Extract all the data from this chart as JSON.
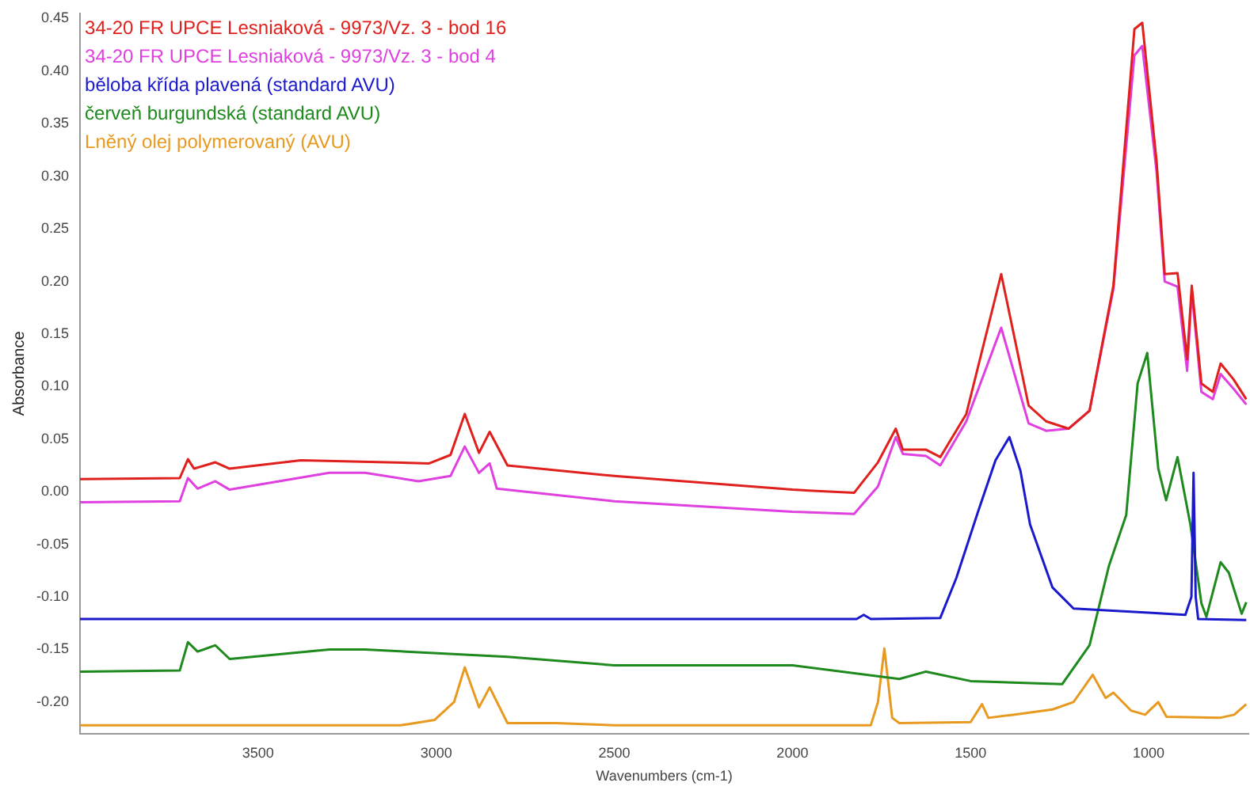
{
  "chart_data": {
    "type": "line",
    "xlabel": "Wavenumbers (cm-1)",
    "ylabel": "Absorbance",
    "xlim": [
      4000,
      720
    ],
    "ylim": [
      -0.23,
      0.455
    ],
    "xticks": [
      3500,
      3000,
      2500,
      2000,
      1500,
      1000
    ],
    "yticks": [
      {
        "value": -0.2,
        "label": "-0.20"
      },
      {
        "value": -0.15,
        "label": "-0.15"
      },
      {
        "value": -0.1,
        "label": "-0.10"
      },
      {
        "value": -0.05,
        "label": "-0.05"
      },
      {
        "value": 0,
        "label": "0.00"
      },
      {
        "value": 0.05,
        "label": "0.05"
      },
      {
        "value": 0.1,
        "label": "0.10"
      },
      {
        "value": 0.15,
        "label": "0.15"
      },
      {
        "value": 0.2,
        "label": "0.20"
      },
      {
        "value": 0.25,
        "label": "0.25"
      },
      {
        "value": 0.3,
        "label": "0.30"
      },
      {
        "value": 0.35,
        "label": "0.35"
      },
      {
        "value": 0.4,
        "label": "0.40"
      },
      {
        "value": 0.45,
        "label": "0.45"
      }
    ],
    "grid": false,
    "legend": "top left",
    "marker": "none",
    "series": [
      {
        "name": "34-20 FR UPCE Lesniaková - 9973/Vz. 3 - bod 16",
        "color": "#e0201c",
        "x": [
          4000,
          3720,
          3697,
          3680,
          3620,
          3580,
          3380,
          3020,
          2960,
          2920,
          2880,
          2850,
          2800,
          2500,
          2000,
          1827,
          1760,
          1710,
          1690,
          1625,
          1585,
          1512,
          1414,
          1337,
          1288,
          1225,
          1166,
          1099,
          1040,
          1018,
          978,
          955,
          919,
          892,
          879,
          852,
          820,
          798,
          762,
          726
        ],
        "values": [
          0.012,
          0.013,
          0.031,
          0.022,
          0.028,
          0.022,
          0.03,
          0.027,
          0.035,
          0.074,
          0.037,
          0.057,
          0.025,
          0.015,
          0.002,
          -0.001,
          0.028,
          0.06,
          0.04,
          0.04,
          0.033,
          0.074,
          0.207,
          0.082,
          0.067,
          0.06,
          0.077,
          0.196,
          0.44,
          0.446,
          0.315,
          0.207,
          0.208,
          0.126,
          0.196,
          0.103,
          0.095,
          0.122,
          0.107,
          0.088
        ]
      },
      {
        "name": "34-20 FR UPCE Lesniaková - 9973/Vz. 3 - bod 4",
        "color": "#e040e0",
        "x": [
          4000,
          3720,
          3697,
          3670,
          3620,
          3580,
          3300,
          3200,
          3050,
          2960,
          2920,
          2880,
          2850,
          2830,
          2500,
          2000,
          1827,
          1760,
          1710,
          1690,
          1625,
          1585,
          1512,
          1414,
          1337,
          1288,
          1225,
          1166,
          1099,
          1040,
          1018,
          978,
          955,
          919,
          892,
          879,
          852,
          820,
          798,
          762,
          726
        ],
        "values": [
          -0.01,
          -0.009,
          0.013,
          0.003,
          0.01,
          0.002,
          0.018,
          0.018,
          0.01,
          0.015,
          0.043,
          0.018,
          0.027,
          0.003,
          -0.009,
          -0.019,
          -0.021,
          0.005,
          0.052,
          0.036,
          0.034,
          0.025,
          0.067,
          0.156,
          0.065,
          0.058,
          0.06,
          0.077,
          0.193,
          0.415,
          0.424,
          0.305,
          0.2,
          0.195,
          0.115,
          0.19,
          0.095,
          0.088,
          0.112,
          0.098,
          0.083
        ]
      },
      {
        "name": "běloba křída plavená (standard AVU)",
        "color": "#1a1acc",
        "x": [
          4000,
          3000,
          1820,
          1800,
          1780,
          1585,
          1540,
          1480,
          1430,
          1391,
          1360,
          1333,
          1270,
          1211,
          1000,
          897,
          880,
          874,
          868,
          861,
          726
        ],
        "values": [
          -0.121,
          -0.121,
          -0.121,
          -0.117,
          -0.121,
          -0.12,
          -0.082,
          -0.02,
          0.03,
          0.052,
          0.02,
          -0.031,
          -0.091,
          -0.111,
          -0.115,
          -0.117,
          -0.1,
          0.018,
          -0.1,
          -0.121,
          -0.122
        ]
      },
      {
        "name": "červeň burgundská (standard AVU)",
        "color": "#1e8a1e",
        "x": [
          4000,
          3720,
          3697,
          3670,
          3620,
          3580,
          3300,
          3200,
          2800,
          2500,
          2000,
          1700,
          1625,
          1500,
          1243,
          1166,
          1112,
          1063,
          1031,
          1004,
          973,
          951,
          919,
          883,
          852,
          838,
          798,
          775,
          739,
          726
        ],
        "values": [
          -0.171,
          -0.17,
          -0.143,
          -0.152,
          -0.146,
          -0.159,
          -0.15,
          -0.15,
          -0.157,
          -0.165,
          -0.165,
          -0.178,
          -0.171,
          -0.18,
          -0.183,
          -0.146,
          -0.071,
          -0.022,
          0.103,
          0.132,
          0.022,
          -0.008,
          0.033,
          -0.031,
          -0.106,
          -0.119,
          -0.067,
          -0.077,
          -0.116,
          -0.105
        ]
      },
      {
        "name": "Lněný olej polymerovaný (AVU)",
        "color": "#e89a20",
        "x": [
          4000,
          3100,
          3078,
          3005,
          2950,
          2920,
          2880,
          2850,
          2800,
          2663,
          2500,
          1780,
          1760,
          1742,
          1720,
          1700,
          1500,
          1468,
          1450,
          1380,
          1270,
          1211,
          1157,
          1121,
          1099,
          1050,
          1010,
          973,
          950,
          800,
          760,
          726
        ],
        "values": [
          -0.222,
          -0.222,
          -0.221,
          -0.217,
          -0.2,
          -0.167,
          -0.205,
          -0.186,
          -0.22,
          -0.22,
          -0.222,
          -0.222,
          -0.2,
          -0.149,
          -0.215,
          -0.22,
          -0.219,
          -0.202,
          -0.215,
          -0.212,
          -0.207,
          -0.2,
          -0.174,
          -0.196,
          -0.191,
          -0.208,
          -0.212,
          -0.2,
          -0.214,
          -0.215,
          -0.212,
          -0.202
        ]
      }
    ]
  }
}
